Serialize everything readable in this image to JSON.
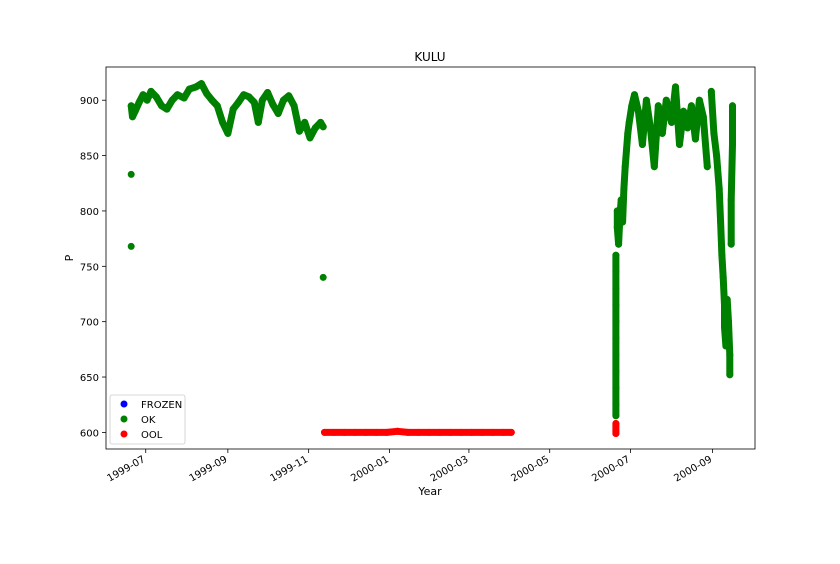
{
  "chart_data": {
    "type": "scatter",
    "title": "KULU",
    "xlabel": "Year",
    "ylabel": "P",
    "x_ticks": [
      "1999-07",
      "1999-09",
      "1999-11",
      "2000-01",
      "2000-03",
      "2000-05",
      "2000-07",
      "2000-09"
    ],
    "y_ticks": [
      "600",
      "650",
      "700",
      "750",
      "800",
      "850",
      "900"
    ],
    "xlim": [
      "1999-06-01",
      "2000-10-03"
    ],
    "ylim": [
      585,
      930
    ],
    "grid": false,
    "legend_position": "lower-left",
    "series": [
      {
        "name": "FROZEN",
        "color": "#0000ff",
        "points": []
      },
      {
        "name": "OK",
        "color": "#008000",
        "points": [
          [
            "1999-06-20",
            833
          ],
          [
            "1999-06-20",
            768
          ],
          [
            "1999-06-20",
            895
          ],
          [
            "1999-06-21",
            885
          ],
          [
            "1999-06-23",
            890
          ],
          [
            "1999-06-26",
            898
          ],
          [
            "1999-06-29",
            905
          ],
          [
            "1999-07-02",
            900
          ],
          [
            "1999-07-05",
            908
          ],
          [
            "1999-07-09",
            903
          ],
          [
            "1999-07-13",
            895
          ],
          [
            "1999-07-17",
            892
          ],
          [
            "1999-07-21",
            900
          ],
          [
            "1999-07-25",
            905
          ],
          [
            "1999-07-30",
            902
          ],
          [
            "1999-08-03",
            910
          ],
          [
            "1999-08-08",
            912
          ],
          [
            "1999-08-12",
            915
          ],
          [
            "1999-08-16",
            906
          ],
          [
            "1999-08-20",
            900
          ],
          [
            "1999-08-24",
            895
          ],
          [
            "1999-08-28",
            880
          ],
          [
            "1999-09-01",
            870
          ],
          [
            "1999-09-05",
            892
          ],
          [
            "1999-09-09",
            898
          ],
          [
            "1999-09-13",
            905
          ],
          [
            "1999-09-17",
            903
          ],
          [
            "1999-09-21",
            898
          ],
          [
            "1999-09-24",
            880
          ],
          [
            "1999-09-27",
            900
          ],
          [
            "1999-10-01",
            907
          ],
          [
            "1999-10-05",
            896
          ],
          [
            "1999-10-09",
            888
          ],
          [
            "1999-10-13",
            900
          ],
          [
            "1999-10-17",
            904
          ],
          [
            "1999-10-21",
            895
          ],
          [
            "1999-10-25",
            872
          ],
          [
            "1999-10-29",
            880
          ],
          [
            "1999-11-02",
            866
          ],
          [
            "1999-11-06",
            875
          ],
          [
            "1999-11-10",
            880
          ],
          [
            "1999-11-12",
            876
          ],
          [
            "1999-11-12",
            740
          ],
          [
            "2000-06-20",
            760
          ],
          [
            "2000-06-20",
            745
          ],
          [
            "2000-06-20",
            730
          ],
          [
            "2000-06-20",
            715
          ],
          [
            "2000-06-20",
            700
          ],
          [
            "2000-06-20",
            685
          ],
          [
            "2000-06-20",
            670
          ],
          [
            "2000-06-20",
            655
          ],
          [
            "2000-06-20",
            640
          ],
          [
            "2000-06-20",
            625
          ],
          [
            "2000-06-20",
            615
          ],
          [
            "2000-06-21",
            800
          ],
          [
            "2000-06-21",
            785
          ],
          [
            "2000-06-22",
            770
          ],
          [
            "2000-06-23",
            795
          ],
          [
            "2000-06-24",
            810
          ],
          [
            "2000-06-25",
            790
          ],
          [
            "2000-06-26",
            820
          ],
          [
            "2000-06-27",
            840
          ],
          [
            "2000-06-28",
            855
          ],
          [
            "2000-06-29",
            870
          ],
          [
            "2000-06-30",
            880
          ],
          [
            "2000-07-02",
            895
          ],
          [
            "2000-07-04",
            905
          ],
          [
            "2000-07-07",
            890
          ],
          [
            "2000-07-10",
            860
          ],
          [
            "2000-07-13",
            900
          ],
          [
            "2000-07-16",
            875
          ],
          [
            "2000-07-19",
            840
          ],
          [
            "2000-07-22",
            895
          ],
          [
            "2000-07-25",
            870
          ],
          [
            "2000-07-28",
            900
          ],
          [
            "2000-08-01",
            880
          ],
          [
            "2000-08-04",
            912
          ],
          [
            "2000-08-07",
            860
          ],
          [
            "2000-08-10",
            890
          ],
          [
            "2000-08-13",
            875
          ],
          [
            "2000-08-16",
            895
          ],
          [
            "2000-08-19",
            865
          ],
          [
            "2000-08-22",
            900
          ],
          [
            "2000-08-25",
            885
          ],
          [
            "2000-08-28",
            840
          ],
          [
            "2000-08-31",
            908
          ],
          [
            "2000-09-02",
            870
          ],
          [
            "2000-09-04",
            850
          ],
          [
            "2000-09-06",
            820
          ],
          [
            "2000-09-07",
            790
          ],
          [
            "2000-09-08",
            760
          ],
          [
            "2000-09-09",
            740
          ],
          [
            "2000-09-10",
            715
          ],
          [
            "2000-09-10",
            695
          ],
          [
            "2000-09-11",
            678
          ],
          [
            "2000-09-12",
            720
          ],
          [
            "2000-09-13",
            700
          ],
          [
            "2000-09-14",
            670
          ],
          [
            "2000-09-14",
            652
          ],
          [
            "2000-09-15",
            770
          ],
          [
            "2000-09-15",
            810
          ],
          [
            "2000-09-16",
            860
          ],
          [
            "2000-09-16",
            895
          ]
        ]
      },
      {
        "name": "OOL",
        "color": "#ff0000",
        "points": [
          [
            "1999-11-13",
            600
          ],
          [
            "1999-11-20",
            600
          ],
          [
            "1999-11-28",
            600
          ],
          [
            "1999-12-06",
            600
          ],
          [
            "1999-12-14",
            600
          ],
          [
            "1999-12-22",
            600
          ],
          [
            "1999-12-30",
            600
          ],
          [
            "2000-01-07",
            601
          ],
          [
            "2000-01-15",
            600
          ],
          [
            "2000-01-23",
            600
          ],
          [
            "2000-01-31",
            600
          ],
          [
            "2000-02-08",
            600
          ],
          [
            "2000-02-16",
            600
          ],
          [
            "2000-02-24",
            600
          ],
          [
            "2000-03-03",
            600
          ],
          [
            "2000-03-11",
            600
          ],
          [
            "2000-03-19",
            600
          ],
          [
            "2000-03-27",
            600
          ],
          [
            "2000-04-02",
            600
          ],
          [
            "2000-06-20",
            608
          ],
          [
            "2000-06-20",
            601
          ],
          [
            "2000-06-20",
            599
          ]
        ]
      }
    ]
  }
}
